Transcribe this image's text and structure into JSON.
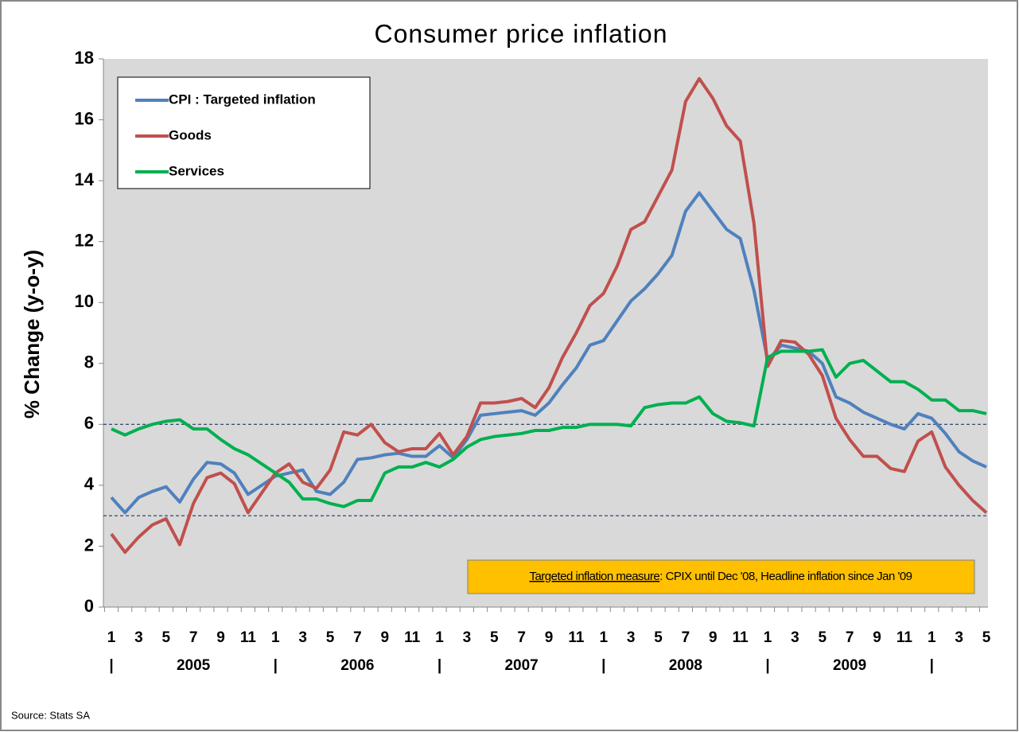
{
  "chart_data": {
    "type": "line",
    "title": "Consumer price inflation",
    "y_label": "% Change (y-o-y)",
    "categories": [
      "1",
      null,
      "3",
      null,
      "5",
      null,
      "7",
      null,
      "9",
      null,
      "11",
      null,
      "1",
      null,
      "3",
      null,
      "5",
      null,
      "7",
      null,
      "9",
      null,
      "11",
      null,
      "1",
      null,
      "3",
      null,
      "5",
      null,
      "7",
      null,
      "9",
      null,
      "11",
      null,
      "1",
      null,
      "3",
      null,
      "5",
      null,
      "7",
      null,
      "9",
      null,
      "11",
      null,
      "1",
      null,
      "3",
      null,
      "5",
      null,
      "7",
      null,
      "9",
      null,
      "11",
      null,
      "1",
      null,
      "3",
      null,
      "5"
    ],
    "years": [
      "2005",
      "2006",
      "2007",
      "2008",
      "2009"
    ],
    "year_separator": "|",
    "series": [
      {
        "name": "CPI : Targeted inflation",
        "color": "#4f81bd",
        "values": [
          3.6,
          3.1,
          3.6,
          3.8,
          3.95,
          3.45,
          4.2,
          4.75,
          4.7,
          4.4,
          3.7,
          4.0,
          4.3,
          4.4,
          4.5,
          3.8,
          3.7,
          4.1,
          4.85,
          4.9,
          5.0,
          5.05,
          4.95,
          4.95,
          5.3,
          4.9,
          5.5,
          6.3,
          6.35,
          6.4,
          6.45,
          6.3,
          6.7,
          7.3,
          7.85,
          8.6,
          8.75,
          9.4,
          10.05,
          10.45,
          10.95,
          11.55,
          13.0,
          13.6,
          13.0,
          12.4,
          12.1,
          10.4,
          8.1,
          8.6,
          8.5,
          8.4,
          8.0,
          6.9,
          6.7,
          6.4,
          6.2,
          6.0,
          5.85,
          6.35,
          6.2,
          5.7,
          5.1,
          4.8,
          4.6
        ]
      },
      {
        "name": "Goods",
        "color": "#c0504d",
        "values": [
          2.4,
          1.8,
          2.3,
          2.7,
          2.9,
          2.05,
          3.4,
          4.25,
          4.4,
          4.05,
          3.1,
          3.75,
          4.4,
          4.7,
          4.1,
          3.9,
          4.5,
          5.75,
          5.65,
          6.0,
          5.4,
          5.1,
          5.2,
          5.2,
          5.7,
          5.0,
          5.6,
          6.7,
          6.7,
          6.75,
          6.85,
          6.55,
          7.2,
          8.2,
          9.0,
          9.9,
          10.3,
          11.2,
          12.4,
          12.65,
          13.5,
          14.35,
          16.6,
          17.35,
          16.7,
          15.8,
          15.3,
          12.6,
          7.9,
          8.75,
          8.7,
          8.3,
          7.6,
          6.2,
          5.5,
          4.95,
          4.95,
          4.55,
          4.45,
          5.45,
          5.75,
          4.6,
          4.0,
          3.5,
          3.1
        ]
      },
      {
        "name": "Services",
        "color": "#00b050",
        "values": [
          5.85,
          5.65,
          5.85,
          6.0,
          6.1,
          6.15,
          5.85,
          5.85,
          5.5,
          5.2,
          5.0,
          4.7,
          4.4,
          4.1,
          3.55,
          3.55,
          3.4,
          3.3,
          3.5,
          3.5,
          4.4,
          4.6,
          4.6,
          4.75,
          4.6,
          4.85,
          5.25,
          5.5,
          5.6,
          5.65,
          5.7,
          5.8,
          5.8,
          5.9,
          5.9,
          6.0,
          6.0,
          6.0,
          5.95,
          6.55,
          6.65,
          6.7,
          6.7,
          6.9,
          6.35,
          6.1,
          6.05,
          5.95,
          8.2,
          8.4,
          8.4,
          8.4,
          8.45,
          7.55,
          8.0,
          8.1,
          7.75,
          7.4,
          7.4,
          7.15,
          6.8,
          6.8,
          6.45,
          6.45,
          6.35
        ]
      }
    ],
    "ylim": [
      0,
      18
    ],
    "yticks": [
      0,
      2,
      4,
      6,
      8,
      10,
      12,
      14,
      16,
      18
    ],
    "reference_lines": [
      3,
      6
    ],
    "annotation": {
      "link": "Targeted inflation measure",
      "text": ": CPIX until Dec '08, Headline inflation since Jan '09"
    },
    "source": "Source: Stats SA",
    "legend": "upper left"
  }
}
